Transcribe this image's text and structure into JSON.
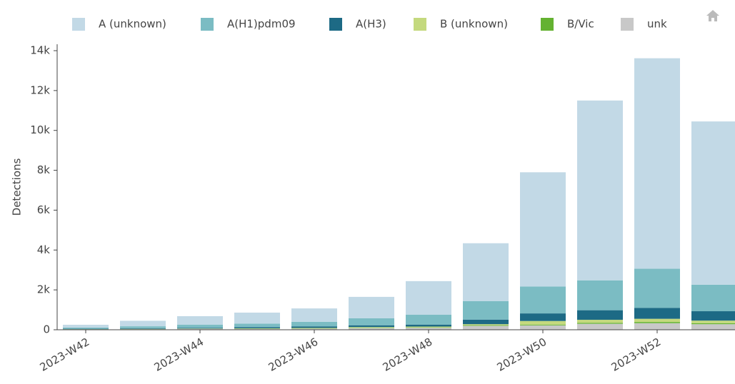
{
  "chart_data": {
    "type": "bar",
    "stacked": true,
    "y_label": "Detections",
    "categories": [
      "2023-W42",
      null,
      "2023-W44",
      null,
      "2023-W46",
      null,
      "2023-W48",
      null,
      "2023-W50",
      null,
      "2023-W52",
      null
    ],
    "series": [
      {
        "name": "A (unknown)",
        "color": "#c2d9e6",
        "values": [
          140,
          275,
          430,
          550,
          670,
          1070,
          1680,
          2900,
          5730,
          9020,
          10560,
          8190
        ]
      },
      {
        "name": "A(H1)pdm09",
        "color": "#7bbcc3",
        "values": [
          60,
          100,
          150,
          180,
          230,
          355,
          500,
          930,
          1350,
          1500,
          1960,
          1330
        ]
      },
      {
        "name": "A(H3)",
        "color": "#1d6a85",
        "values": [
          20,
          30,
          40,
          60,
          80,
          90,
          100,
          230,
          380,
          480,
          550,
          470
        ]
      },
      {
        "name": "B (unknown)",
        "color": "#c4d97e",
        "values": [
          5,
          10,
          15,
          20,
          30,
          40,
          40,
          50,
          180,
          150,
          160,
          130
        ]
      },
      {
        "name": "B/Vic",
        "color": "#64b231",
        "values": [
          5,
          5,
          5,
          10,
          10,
          15,
          20,
          30,
          40,
          50,
          60,
          50
        ]
      },
      {
        "name": "unk",
        "color": "#c8c8c8",
        "values": [
          20,
          30,
          40,
          40,
          50,
          80,
          100,
          200,
          220,
          300,
          330,
          280
        ]
      }
    ],
    "ylim": [
      0,
      14000
    ],
    "yticks": [
      0,
      {
        "value": 2000,
        "label": "2k"
      },
      {
        "value": 4000,
        "label": "4k"
      },
      {
        "value": 6000,
        "label": "6k"
      },
      {
        "value": 8000,
        "label": "8k"
      },
      {
        "value": 10000,
        "label": "10k"
      },
      {
        "value": 12000,
        "label": "12k"
      },
      {
        "value": 14000,
        "label": "14k"
      }
    ]
  }
}
